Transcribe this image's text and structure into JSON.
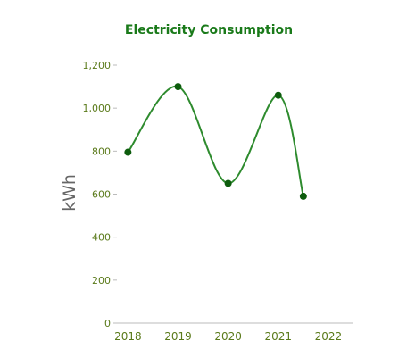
{
  "chart_data": {
    "type": "line",
    "title": "Electricity Consumption",
    "xlabel": "",
    "ylabel": "kWh",
    "x_ticks": [
      "2018",
      "2019",
      "2020",
      "2021",
      "2022"
    ],
    "x_range": [
      2017.78,
      2022.5
    ],
    "y_ticks": [
      "0",
      "200",
      "400",
      "600",
      "800",
      "1,000",
      "1,200"
    ],
    "y_tick_values": [
      0,
      200,
      400,
      600,
      800,
      1000,
      1200
    ],
    "ylim": [
      0,
      1200
    ],
    "grid": false,
    "smooth": true,
    "series": [
      {
        "x": [
          2018,
          2019,
          2020,
          2021,
          2021.5
        ],
        "y": [
          795,
          1100,
          650,
          1060,
          590
        ]
      }
    ],
    "colors": {
      "title": "#1a7a1a",
      "line": "#2e8b2e",
      "marker": "#0d5c0d",
      "tick_text": "#5a7a1a",
      "ylabel": "#666666",
      "axis": "#bbbbbb"
    }
  }
}
